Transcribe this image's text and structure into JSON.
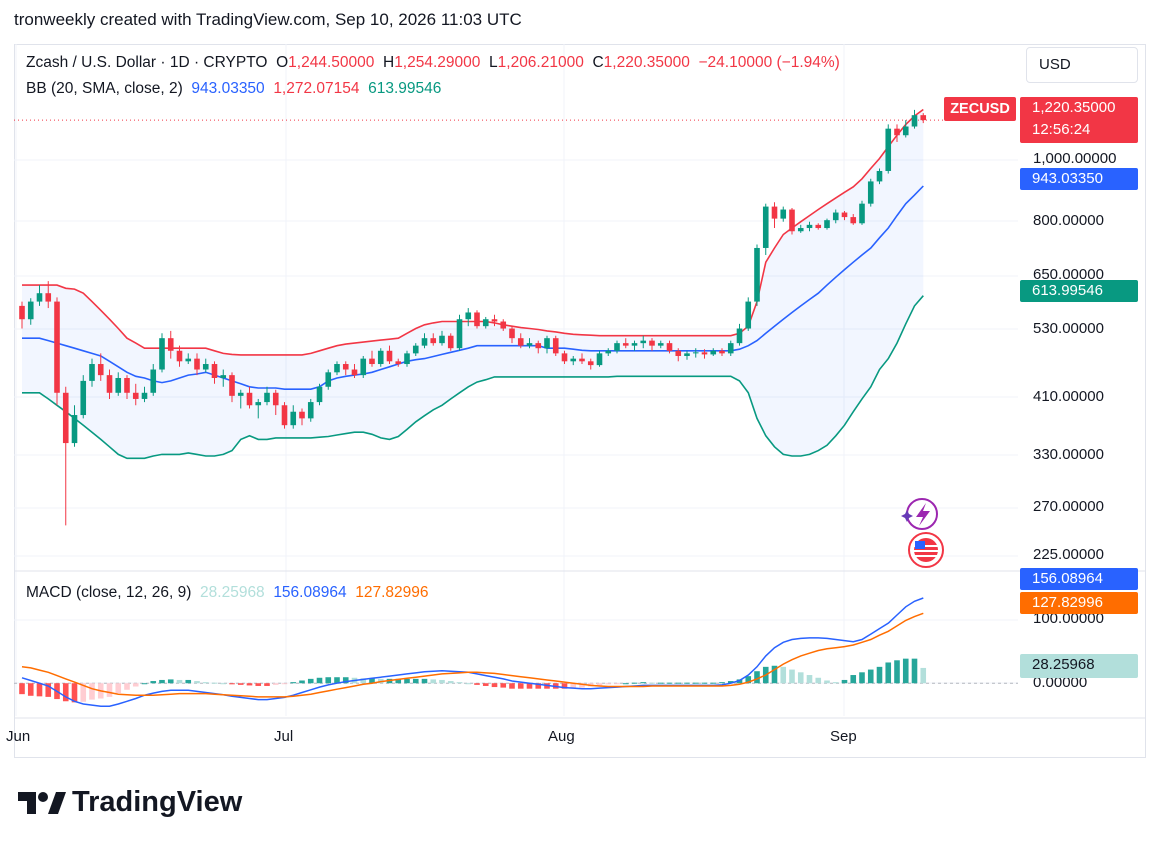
{
  "header": {
    "text": "tronweekly created with TradingView.com, Sep 10, 2026 11:03 UTC"
  },
  "legend": {
    "symbol": "Zcash / U.S. Dollar · 1D · CRYPTO",
    "o_label": "O",
    "o_value": "1,244.50000",
    "h_label": "H",
    "h_value": "1,254.29000",
    "l_label": "L",
    "l_value": "1,206.21000",
    "c_label": "C",
    "c_value": "1,220.35000",
    "change": "−24.10000 (−1.94%)",
    "bb_label": "BB (20, SMA, close, 2)",
    "bb_basis": "943.03350",
    "bb_upper": "1,272.07154",
    "bb_lower": "613.99546",
    "macd_label": "MACD (close, 12, 26, 9)",
    "macd_hist": "28.25968",
    "macd_line": "156.08964",
    "macd_signal": "127.82996"
  },
  "currency_button": "USD",
  "price_scale": {
    "symbol_tag": "ZECUSD",
    "last_price": "1,220.35000",
    "countdown": "12:56:24",
    "basis_tag": "943.03350",
    "lower_tag": "613.99546",
    "labels": [
      "1,000.00000",
      "800.00000",
      "650.00000",
      "530.00000",
      "410.00000",
      "330.00000",
      "270.00000",
      "225.00000"
    ]
  },
  "macd_scale": {
    "macd_tag": "156.08964",
    "signal_tag": "127.82996",
    "hist_tag": "28.25968",
    "labels": [
      "100.00000",
      "0.00000"
    ]
  },
  "time_axis": [
    "Jun",
    "Jul",
    "Aug",
    "Sep"
  ],
  "brand": "TradingView",
  "colors": {
    "up": "#089981",
    "down": "#f23645",
    "bb_basis": "#2962ff",
    "bb_upper": "#f23645",
    "bb_lower": "#089981",
    "macd": "#2962ff",
    "signal": "#ff6d00",
    "hist_up_strong": "#26a69a",
    "hist_up_weak": "#b2dfdb",
    "hist_down_strong": "#ff5252",
    "hist_down_weak": "#ffcdd2"
  },
  "chart_data": {
    "type": "candlestick",
    "x_start": "2026-05-31",
    "y_scale": "log",
    "ylim": [
      210,
      1320
    ],
    "candles": [
      [
        590,
        560,
        600,
        540
      ],
      [
        560,
        600,
        608,
        548
      ],
      [
        600,
        620,
        640,
        590
      ],
      [
        620,
        600,
        650,
        585
      ],
      [
        600,
        420,
        610,
        400
      ],
      [
        420,
        345,
        430,
        250
      ],
      [
        345,
        385,
        400,
        340
      ],
      [
        385,
        440,
        450,
        380
      ],
      [
        440,
        470,
        480,
        430
      ],
      [
        470,
        450,
        490,
        440
      ],
      [
        450,
        420,
        460,
        410
      ],
      [
        420,
        445,
        455,
        415
      ],
      [
        445,
        420,
        450,
        410
      ],
      [
        420,
        410,
        435,
        400
      ],
      [
        410,
        420,
        430,
        405
      ],
      [
        420,
        460,
        470,
        415
      ],
      [
        460,
        520,
        530,
        455
      ],
      [
        520,
        495,
        535,
        480
      ],
      [
        495,
        475,
        505,
        465
      ],
      [
        475,
        480,
        490,
        470
      ],
      [
        480,
        460,
        490,
        450
      ],
      [
        460,
        470,
        480,
        455
      ],
      [
        470,
        445,
        475,
        435
      ],
      [
        445,
        450,
        460,
        430
      ],
      [
        450,
        415,
        455,
        405
      ],
      [
        415,
        420,
        425,
        395
      ],
      [
        420,
        400,
        430,
        395
      ],
      [
        400,
        405,
        410,
        380
      ],
      [
        405,
        420,
        430,
        400
      ],
      [
        420,
        400,
        425,
        385
      ],
      [
        400,
        370,
        405,
        365
      ],
      [
        370,
        390,
        400,
        365
      ],
      [
        390,
        380,
        395,
        370
      ],
      [
        380,
        405,
        410,
        375
      ],
      [
        405,
        430,
        435,
        400
      ],
      [
        430,
        455,
        460,
        425
      ],
      [
        455,
        470,
        475,
        450
      ],
      [
        470,
        460,
        475,
        450
      ],
      [
        460,
        450,
        470,
        445
      ],
      [
        450,
        480,
        485,
        445
      ],
      [
        480,
        470,
        495,
        465
      ],
      [
        470,
        495,
        500,
        465
      ],
      [
        495,
        475,
        505,
        470
      ],
      [
        475,
        470,
        480,
        465
      ],
      [
        470,
        490,
        495,
        465
      ],
      [
        490,
        505,
        510,
        485
      ],
      [
        505,
        520,
        530,
        500
      ],
      [
        520,
        510,
        530,
        505
      ],
      [
        510,
        525,
        535,
        505
      ],
      [
        525,
        500,
        530,
        495
      ],
      [
        500,
        560,
        570,
        495
      ],
      [
        560,
        575,
        585,
        545
      ],
      [
        575,
        545,
        580,
        540
      ],
      [
        545,
        560,
        565,
        540
      ],
      [
        560,
        555,
        570,
        545
      ],
      [
        555,
        540,
        560,
        535
      ],
      [
        540,
        520,
        545,
        510
      ],
      [
        520,
        505,
        530,
        500
      ],
      [
        505,
        510,
        520,
        500
      ],
      [
        510,
        500,
        515,
        490
      ],
      [
        500,
        520,
        525,
        490
      ],
      [
        520,
        490,
        525,
        485
      ],
      [
        490,
        475,
        495,
        470
      ],
      [
        475,
        480,
        485,
        468
      ],
      [
        480,
        475,
        490,
        470
      ],
      [
        475,
        468,
        480,
        460
      ],
      [
        468,
        490,
        495,
        465
      ],
      [
        490,
        495,
        500,
        485
      ],
      [
        495,
        510,
        515,
        490
      ],
      [
        510,
        505,
        520,
        500
      ],
      [
        505,
        510,
        515,
        495
      ],
      [
        510,
        515,
        525,
        500
      ],
      [
        515,
        505,
        520,
        495
      ],
      [
        505,
        510,
        515,
        500
      ],
      [
        510,
        495,
        515,
        490
      ],
      [
        495,
        485,
        500,
        475
      ],
      [
        485,
        490,
        495,
        478
      ],
      [
        490,
        492,
        500,
        482
      ],
      [
        492,
        488,
        498,
        480
      ],
      [
        488,
        495,
        500,
        485
      ],
      [
        495,
        490,
        500,
        485
      ],
      [
        490,
        510,
        515,
        485
      ],
      [
        510,
        540,
        550,
        505
      ],
      [
        540,
        600,
        610,
        535
      ],
      [
        600,
        740,
        750,
        590
      ],
      [
        740,
        870,
        880,
        720
      ],
      [
        870,
        830,
        885,
        800
      ],
      [
        830,
        860,
        870,
        820
      ],
      [
        860,
        790,
        865,
        780
      ],
      [
        790,
        800,
        810,
        785
      ],
      [
        800,
        810,
        820,
        790
      ],
      [
        810,
        800,
        815,
        795
      ],
      [
        800,
        825,
        830,
        795
      ],
      [
        825,
        850,
        860,
        815
      ],
      [
        850,
        835,
        855,
        825
      ],
      [
        835,
        815,
        845,
        810
      ],
      [
        815,
        880,
        890,
        810
      ],
      [
        880,
        960,
        970,
        870
      ],
      [
        960,
        1000,
        1010,
        950
      ],
      [
        1000,
        1180,
        1200,
        990
      ],
      [
        1180,
        1150,
        1200,
        1120
      ],
      [
        1150,
        1190,
        1220,
        1140
      ],
      [
        1190,
        1244,
        1270,
        1180
      ],
      [
        1244,
        1220,
        1254,
        1206
      ]
    ],
    "bb_upper": [
      640,
      640,
      640,
      640,
      640,
      632,
      630,
      620,
      600,
      580,
      560,
      540,
      520,
      510,
      500,
      500,
      500,
      500,
      500,
      500,
      500,
      500,
      495,
      490,
      488,
      487,
      487,
      487,
      487,
      487,
      487,
      487,
      487,
      490,
      495,
      500,
      505,
      508,
      510,
      512,
      514,
      516,
      518,
      520,
      530,
      540,
      548,
      552,
      555,
      555,
      555,
      555,
      555,
      555,
      552,
      548,
      545,
      542,
      540,
      538,
      535,
      533,
      530,
      528,
      527,
      526,
      525,
      525,
      525,
      525,
      525,
      525,
      525,
      525,
      525,
      525,
      525,
      525,
      525,
      525,
      525,
      525,
      530,
      545,
      600,
      700,
      740,
      780,
      800,
      820,
      840,
      860,
      880,
      900,
      920,
      940,
      970,
      1010,
      1050,
      1100,
      1150,
      1200,
      1240,
      1272
    ],
    "bb_basis": [
      520,
      520,
      520,
      515,
      510,
      505,
      500,
      495,
      490,
      485,
      475,
      465,
      455,
      448,
      445,
      440,
      437,
      440,
      445,
      450,
      452,
      455,
      450,
      445,
      440,
      435,
      430,
      428,
      428,
      428,
      426,
      426,
      426,
      426,
      430,
      440,
      445,
      448,
      450,
      452,
      455,
      460,
      465,
      470,
      475,
      478,
      480,
      484,
      488,
      492,
      496,
      500,
      505,
      505,
      505,
      505,
      505,
      505,
      505,
      505,
      500,
      500,
      500,
      498,
      496,
      495,
      495,
      495,
      495,
      495,
      495,
      495,
      495,
      495,
      495,
      495,
      495,
      495,
      495,
      495,
      495,
      495,
      498,
      505,
      515,
      530,
      545,
      560,
      575,
      590,
      605,
      620,
      640,
      660,
      680,
      700,
      720,
      740,
      770,
      800,
      840,
      880,
      910,
      943
    ],
    "bb_lower": [
      420,
      420,
      420,
      410,
      400,
      390,
      380,
      370,
      360,
      350,
      340,
      330,
      325,
      325,
      325,
      328,
      330,
      330,
      330,
      332,
      330,
      328,
      328,
      330,
      335,
      350,
      355,
      350,
      350,
      352,
      352,
      352,
      352,
      352,
      353,
      354,
      356,
      358,
      360,
      360,
      357,
      352,
      350,
      354,
      364,
      375,
      384,
      393,
      400,
      410,
      420,
      430,
      438,
      442,
      447,
      447,
      447,
      447,
      447,
      447,
      447,
      447,
      447,
      447,
      447,
      447,
      447,
      447,
      448,
      448,
      448,
      448,
      448,
      448,
      448,
      448,
      448,
      448,
      448,
      448,
      448,
      448,
      440,
      420,
      380,
      355,
      340,
      330,
      328,
      328,
      330,
      335,
      342,
      355,
      370,
      390,
      410,
      430,
      460,
      480,
      510,
      550,
      590,
      614
    ],
    "macd_ylim": [
      -60,
      200
    ],
    "macd": [
      10,
      5,
      0,
      -5,
      -15,
      -25,
      -33,
      -38,
      -40,
      -42,
      -42,
      -38,
      -33,
      -28,
      -22,
      -18,
      -15,
      -13,
      -13,
      -13,
      -15,
      -17,
      -19,
      -21,
      -24,
      -26,
      -28,
      -30,
      -30,
      -28,
      -26,
      -22,
      -17,
      -12,
      -7,
      -3,
      0,
      3,
      5,
      7,
      9,
      11,
      13,
      15,
      17,
      19,
      21,
      22,
      23,
      22,
      21,
      20,
      17,
      14,
      11,
      8,
      4,
      2,
      0,
      -2,
      -4,
      -6,
      -8,
      -9,
      -10,
      -10,
      -9,
      -8,
      -7,
      -6,
      -5,
      -4,
      -4,
      -4,
      -4,
      -4,
      -4,
      -4,
      -4,
      -4,
      -3,
      0,
      5,
      15,
      30,
      50,
      65,
      75,
      80,
      82,
      83,
      83,
      82,
      80,
      78,
      76,
      80,
      90,
      100,
      110,
      125,
      140,
      150,
      156
    ],
    "signal": [
      30,
      28,
      24,
      20,
      14,
      8,
      2,
      -4,
      -10,
      -14,
      -17,
      -20,
      -21,
      -22,
      -22,
      -22,
      -21,
      -20,
      -19,
      -19,
      -19,
      -19,
      -20,
      -21,
      -22,
      -23,
      -24,
      -25,
      -25,
      -25,
      -25,
      -24,
      -22,
      -20,
      -17,
      -14,
      -11,
      -8,
      -5,
      -2,
      0,
      3,
      5,
      7,
      9,
      11,
      13,
      15,
      17,
      18,
      19,
      20,
      20,
      19,
      18,
      16,
      14,
      12,
      10,
      8,
      6,
      4,
      2,
      0,
      -2,
      -4,
      -5,
      -6,
      -6,
      -6,
      -6,
      -6,
      -5,
      -5,
      -5,
      -5,
      -5,
      -5,
      -5,
      -5,
      -5,
      -4,
      -2,
      2,
      8,
      15,
      25,
      35,
      43,
      50,
      55,
      60,
      63,
      65,
      67,
      70,
      75,
      80,
      88,
      95,
      105,
      115,
      122,
      128
    ],
    "histogram": [
      -20,
      -23,
      -24,
      -25,
      -29,
      -33,
      -35,
      -34,
      -30,
      -28,
      -25,
      -18,
      -12,
      -6,
      0,
      4,
      6,
      7,
      6,
      6,
      4,
      2,
      1,
      0,
      -2,
      -3,
      -4,
      -5,
      -5,
      -3,
      -1,
      2,
      5,
      8,
      10,
      11,
      11,
      11,
      10,
      9,
      9,
      8,
      8,
      8,
      8,
      8,
      8,
      7,
      6,
      4,
      2,
      0,
      -3,
      -5,
      -7,
      -8,
      -10,
      -10,
      -10,
      -10,
      -10,
      -10,
      -10,
      -9,
      -8,
      -6,
      -4,
      -2,
      -1,
      0,
      1,
      2,
      1,
      1,
      1,
      1,
      1,
      1,
      1,
      1,
      2,
      4,
      7,
      13,
      22,
      30,
      32,
      30,
      25,
      20,
      15,
      10,
      5,
      2,
      6,
      15,
      20,
      25,
      30,
      38,
      42,
      45,
      45,
      28
    ]
  }
}
